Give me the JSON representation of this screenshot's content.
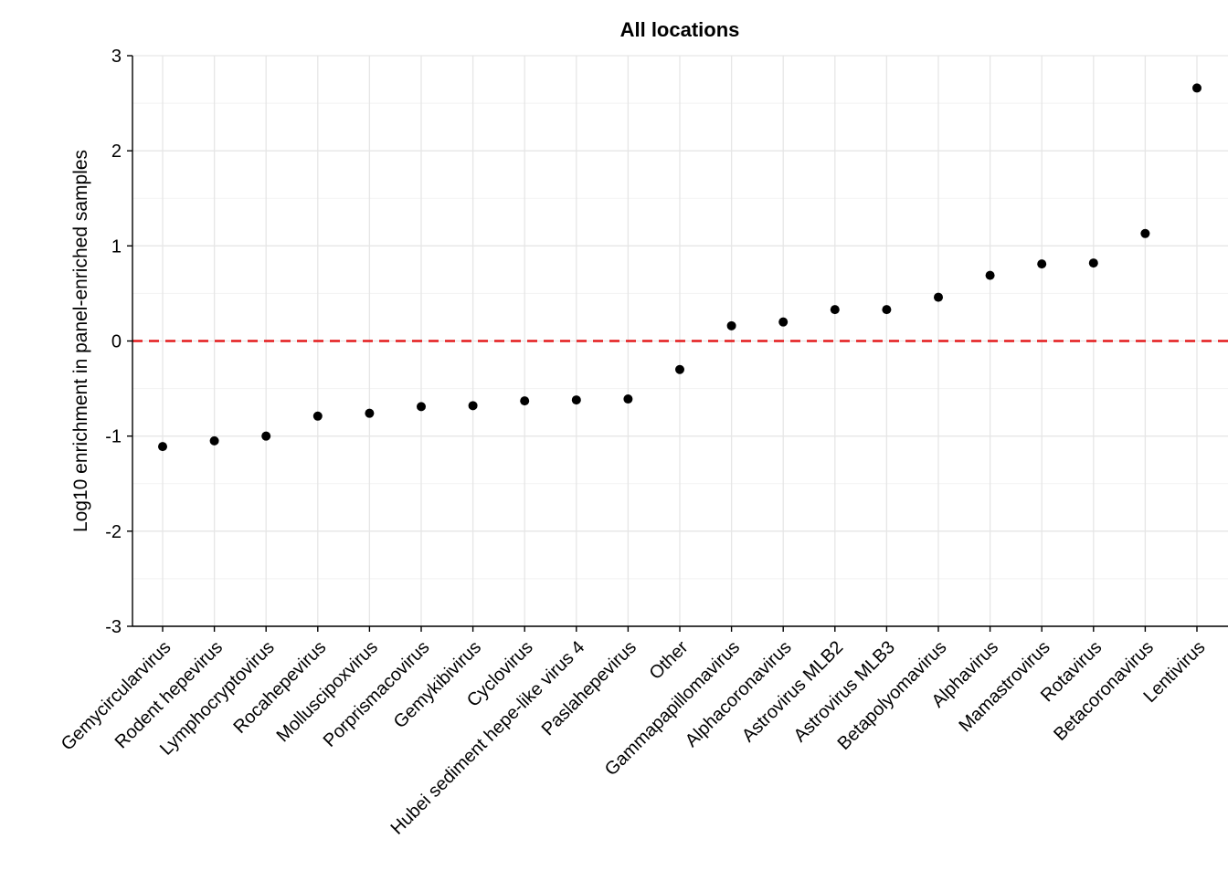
{
  "chart_data": {
    "type": "scatter",
    "title": "All locations",
    "xlabel": "",
    "ylabel": "Log10 enrichment in panel-enriched samples",
    "ylim": [
      -3,
      3
    ],
    "yticks": [
      "3",
      "2",
      "1",
      "0",
      "-1",
      "-2",
      "-3"
    ],
    "grid": true,
    "reference_line": {
      "y": 0,
      "style": "dashed",
      "color": "#e41a1c"
    },
    "point_color": "#000000",
    "categories": [
      "Gemycircularvirus",
      "Rodent hepevirus",
      "Lymphocryptovirus",
      "Rocahepevirus",
      "Molluscipoxvirus",
      "Porprismacovirus",
      "Gemykibivirus",
      "Cyclovirus",
      "Hubei sediment hepe-like virus 4",
      "Paslahepevirus",
      "Other",
      "Gammapapillomavirus",
      "Alphacoronavirus",
      "Astrovirus MLB2",
      "Astrovirus MLB3",
      "Betapolyomavirus",
      "Alphavirus",
      "Mamastrovirus",
      "Rotavirus",
      "Betacoronavirus",
      "Lentivirus"
    ],
    "values": [
      -1.11,
      -1.05,
      -1.0,
      -0.79,
      -0.76,
      -0.69,
      -0.68,
      -0.63,
      -0.62,
      -0.61,
      -0.3,
      0.16,
      0.2,
      0.33,
      0.33,
      0.46,
      0.69,
      0.81,
      0.82,
      1.13,
      2.66
    ]
  }
}
